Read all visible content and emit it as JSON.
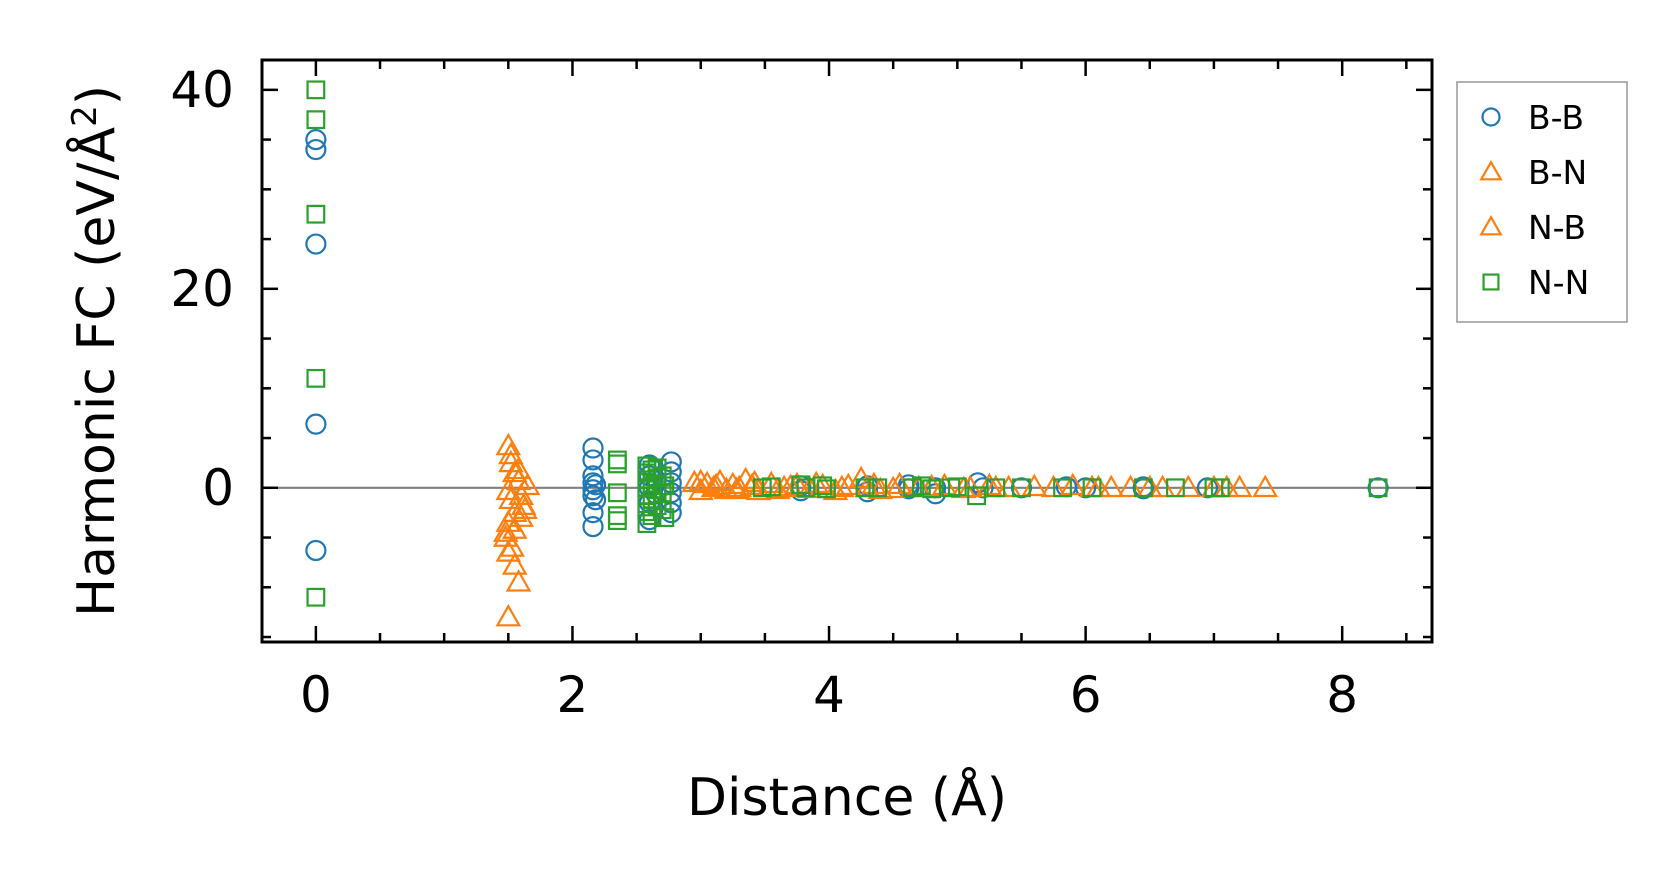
{
  "chart_data": {
    "type": "scatter",
    "title": "",
    "xlabel": "Distance (Å)",
    "ylabel": "Harmonic FC (eV/Å²)",
    "ylabel_main": "Harmonic FC (eV/Å",
    "ylabel_sup": "2",
    "ylabel_close": ")",
    "xlim": [
      -0.42,
      8.7
    ],
    "ylim": [
      -15.5,
      43
    ],
    "xticks": [
      0,
      2,
      4,
      6,
      8
    ],
    "xtick_labels": [
      "0",
      "2",
      "4",
      "6",
      "8"
    ],
    "yticks": [
      0,
      20,
      40
    ],
    "ytick_labels": [
      "0",
      "20",
      "40"
    ],
    "zero_line": true,
    "grid": false,
    "legend_position": "outside-right-top",
    "series": [
      {
        "name": "B-B",
        "marker": "circle",
        "color": "#1f77b4",
        "points": [
          [
            0,
            35
          ],
          [
            0,
            34
          ],
          [
            0,
            24.5
          ],
          [
            0,
            6.4
          ],
          [
            0,
            -6.3
          ],
          [
            2.16,
            4
          ],
          [
            2.16,
            2.8
          ],
          [
            2.16,
            1.2
          ],
          [
            2.16,
            0.5
          ],
          [
            2.16,
            -0.2
          ],
          [
            2.16,
            -0.8
          ],
          [
            2.16,
            -2.5
          ],
          [
            2.16,
            -3.9
          ],
          [
            2.18,
            0.3
          ],
          [
            2.18,
            -1.2
          ],
          [
            2.6,
            2.3
          ],
          [
            2.6,
            1.2
          ],
          [
            2.6,
            0
          ],
          [
            2.6,
            -1.5
          ],
          [
            2.6,
            -3.2
          ],
          [
            2.65,
            0.8
          ],
          [
            2.65,
            -0.6
          ],
          [
            2.77,
            2.6
          ],
          [
            2.77,
            1.6
          ],
          [
            2.77,
            0.5
          ],
          [
            2.77,
            -0.5
          ],
          [
            2.77,
            -1.5
          ],
          [
            2.77,
            -2.5
          ],
          [
            3.78,
            0.2
          ],
          [
            3.78,
            -0.3
          ],
          [
            4.3,
            0.2
          ],
          [
            4.3,
            -0.4
          ],
          [
            4.62,
            0.3
          ],
          [
            4.62,
            -0.1
          ],
          [
            4.83,
            0
          ],
          [
            4.83,
            -0.6
          ],
          [
            5.16,
            0.5
          ],
          [
            5.2,
            0
          ],
          [
            5.5,
            0
          ],
          [
            5.85,
            0.1
          ],
          [
            6.0,
            0
          ],
          [
            6.45,
            0.1
          ],
          [
            6.45,
            -0.1
          ],
          [
            6.95,
            0
          ],
          [
            8.28,
            0
          ]
        ]
      },
      {
        "name": "B-N",
        "marker": "triangle",
        "color": "#ff7f0e",
        "points": [
          [
            1.5,
            4.2
          ],
          [
            1.52,
            2.5
          ],
          [
            1.55,
            1.5
          ],
          [
            1.58,
            0.7
          ],
          [
            1.5,
            -0.3
          ],
          [
            1.52,
            -1.2
          ],
          [
            1.55,
            -2.5
          ],
          [
            1.5,
            -3.5
          ],
          [
            1.55,
            -4.2
          ],
          [
            1.6,
            -3
          ],
          [
            1.62,
            -1.8
          ],
          [
            1.65,
            0.2
          ],
          [
            1.48,
            -5
          ],
          [
            1.5,
            -6.5
          ],
          [
            1.55,
            -7.8
          ],
          [
            1.58,
            -9.5
          ],
          [
            1.5,
            -13
          ],
          [
            2.95,
            0.5
          ],
          [
            3.0,
            -0.3
          ],
          [
            3.05,
            0.4
          ],
          [
            3.1,
            0
          ],
          [
            3.15,
            0.6
          ],
          [
            3.2,
            -0.2
          ],
          [
            3.25,
            0.3
          ],
          [
            3.3,
            0
          ],
          [
            3.35,
            0.8
          ],
          [
            3.4,
            0.2
          ],
          [
            3.45,
            -0.3
          ],
          [
            3.55,
            0.4
          ],
          [
            3.65,
            0
          ],
          [
            3.75,
            0.3
          ],
          [
            3.85,
            -0.1
          ],
          [
            3.95,
            0.2
          ],
          [
            4.05,
            -0.3
          ],
          [
            4.15,
            0.2
          ],
          [
            4.25,
            0.9
          ],
          [
            4.3,
            0
          ],
          [
            4.4,
            -0.2
          ],
          [
            4.55,
            0.3
          ],
          [
            4.7,
            0
          ],
          [
            4.9,
            0.2
          ],
          [
            5.05,
            -0.1
          ],
          [
            5.25,
            0.2
          ],
          [
            5.4,
            0
          ],
          [
            5.6,
            0.1
          ],
          [
            5.75,
            0
          ],
          [
            5.9,
            0.2
          ],
          [
            6.05,
            0
          ],
          [
            6.2,
            0
          ],
          [
            6.35,
            0
          ],
          [
            6.6,
            0
          ],
          [
            6.8,
            0
          ],
          [
            7.0,
            0
          ],
          [
            7.2,
            0
          ],
          [
            7.4,
            0
          ]
        ]
      },
      {
        "name": "N-B",
        "marker": "triangle",
        "color": "#ff7f0e",
        "points": [
          [
            1.52,
            3.3
          ],
          [
            1.58,
            1.8
          ],
          [
            1.6,
            -0.8
          ],
          [
            1.63,
            -2.2
          ],
          [
            1.48,
            -4.5
          ],
          [
            1.53,
            -6
          ],
          [
            3.0,
            0.6
          ],
          [
            3.12,
            0.2
          ],
          [
            3.28,
            -0.2
          ],
          [
            3.42,
            0.5
          ],
          [
            3.6,
            -0.2
          ],
          [
            3.7,
            0.1
          ],
          [
            3.9,
            0.4
          ],
          [
            4.1,
            0
          ],
          [
            4.35,
            0.3
          ],
          [
            4.5,
            -0.1
          ],
          [
            4.8,
            0.1
          ],
          [
            5.1,
            0
          ],
          [
            5.3,
            0
          ],
          [
            6.1,
            0
          ],
          [
            6.5,
            0
          ],
          [
            7.1,
            0
          ]
        ]
      },
      {
        "name": "N-N",
        "marker": "square",
        "color": "#2ca02c",
        "points": [
          [
            0,
            40
          ],
          [
            0,
            37
          ],
          [
            0,
            27.5
          ],
          [
            0,
            11
          ],
          [
            0,
            -11
          ],
          [
            2.35,
            2.8
          ],
          [
            2.35,
            2.4
          ],
          [
            2.35,
            -0.5
          ],
          [
            2.35,
            -2.8
          ],
          [
            2.35,
            -3.3
          ],
          [
            2.58,
            2.2
          ],
          [
            2.58,
            1.5
          ],
          [
            2.58,
            0.8
          ],
          [
            2.58,
            0
          ],
          [
            2.58,
            -0.8
          ],
          [
            2.58,
            -1.6
          ],
          [
            2.58,
            -2.4
          ],
          [
            2.58,
            -3.6
          ],
          [
            2.62,
            1.8
          ],
          [
            2.62,
            0.4
          ],
          [
            2.62,
            -1.2
          ],
          [
            2.62,
            -2.8
          ],
          [
            2.66,
            2
          ],
          [
            2.66,
            1
          ],
          [
            2.66,
            -0.2
          ],
          [
            2.66,
            -1.8
          ],
          [
            2.7,
            1.2
          ],
          [
            2.7,
            -0.6
          ],
          [
            2.7,
            -2.2
          ],
          [
            2.72,
            0.2
          ],
          [
            2.72,
            -3
          ],
          [
            3.48,
            0
          ],
          [
            3.55,
            0.1
          ],
          [
            3.78,
            0.3
          ],
          [
            3.82,
            0
          ],
          [
            3.95,
            0.2
          ],
          [
            3.98,
            -0.1
          ],
          [
            4.28,
            0
          ],
          [
            4.38,
            0
          ],
          [
            4.65,
            0
          ],
          [
            4.72,
            0.2
          ],
          [
            4.8,
            -0.1
          ],
          [
            4.95,
            0
          ],
          [
            5.0,
            0.1
          ],
          [
            5.15,
            -0.8
          ],
          [
            5.3,
            0
          ],
          [
            5.5,
            0
          ],
          [
            5.82,
            0
          ],
          [
            6.05,
            0
          ],
          [
            6.45,
            0
          ],
          [
            6.7,
            0
          ],
          [
            7.0,
            0
          ],
          [
            7.05,
            0
          ],
          [
            8.28,
            0
          ]
        ]
      }
    ]
  }
}
